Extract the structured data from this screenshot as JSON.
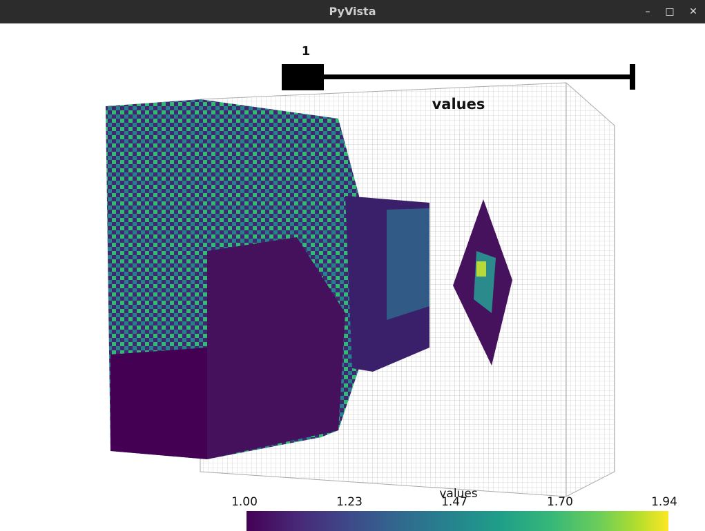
{
  "window": {
    "title": "PyVista",
    "minimize_glyph": "–",
    "maximize_glyph": "□",
    "close_glyph": "✕"
  },
  "slider": {
    "value": "1",
    "title": "values"
  },
  "scalar_bar": {
    "title": "values",
    "ticks": [
      "1.00",
      "1.23",
      "1.47",
      "1.70",
      "1.94"
    ],
    "colormap": "viridis"
  },
  "colors": {
    "low": "#440154",
    "mid": "#21918c",
    "high": "#fde725",
    "grid": "#b8b8b8",
    "titlebar": "#2c2c2c"
  }
}
